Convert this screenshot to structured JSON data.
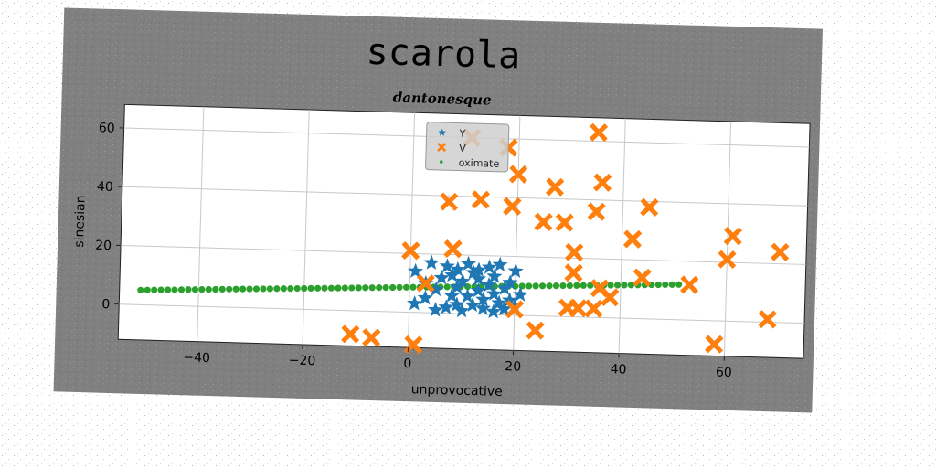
{
  "chart_data": {
    "type": "scatter",
    "title": "scarola",
    "subtitle": "dantonesque",
    "xlabel": "unprovocative",
    "ylabel": "sinesian",
    "xlim": [
      -55,
      75
    ],
    "ylim": [
      -12,
      68
    ],
    "xticks": [
      -40,
      -20,
      0,
      20,
      40,
      60
    ],
    "yticks": [
      0,
      20,
      40,
      60
    ],
    "grid": true,
    "legend": {
      "position": "top-center",
      "entries": [
        "Y",
        "V",
        "oximate"
      ]
    },
    "series": [
      {
        "name": "Y",
        "marker": "star",
        "color": "#1f77b4",
        "points": [
          [
            1,
            3
          ],
          [
            1,
            14
          ],
          [
            3,
            5
          ],
          [
            3,
            10
          ],
          [
            4,
            17
          ],
          [
            5,
            8
          ],
          [
            5,
            1
          ],
          [
            6,
            12
          ],
          [
            7,
            2
          ],
          [
            7,
            16
          ],
          [
            8,
            6
          ],
          [
            8,
            13
          ],
          [
            9,
            3
          ],
          [
            9,
            9
          ],
          [
            9,
            15
          ],
          [
            10,
            1
          ],
          [
            10,
            11
          ],
          [
            11,
            6
          ],
          [
            11,
            17
          ],
          [
            12,
            14
          ],
          [
            12,
            3
          ],
          [
            13,
            8
          ],
          [
            13,
            12
          ],
          [
            13,
            15
          ],
          [
            14,
            2
          ],
          [
            14,
            5
          ],
          [
            15,
            10
          ],
          [
            15,
            16
          ],
          [
            16,
            7
          ],
          [
            16,
            1
          ],
          [
            16,
            13
          ],
          [
            17,
            4
          ],
          [
            17,
            17
          ],
          [
            18,
            9
          ],
          [
            18,
            2
          ],
          [
            19,
            11
          ],
          [
            19,
            5
          ],
          [
            20,
            15
          ],
          [
            20,
            3
          ],
          [
            21,
            7
          ]
        ]
      },
      {
        "name": "V",
        "marker": "x",
        "color": "#ff7f0e",
        "points": [
          [
            -11,
            -8
          ],
          [
            -7,
            -9
          ],
          [
            0,
            21
          ],
          [
            1,
            -11
          ],
          [
            3,
            10
          ],
          [
            7,
            38
          ],
          [
            8,
            22
          ],
          [
            11,
            60
          ],
          [
            13,
            39
          ],
          [
            18,
            57
          ],
          [
            19,
            37
          ],
          [
            20,
            48
          ],
          [
            20,
            2
          ],
          [
            24,
            -5
          ],
          [
            25,
            32
          ],
          [
            27,
            44
          ],
          [
            29,
            32
          ],
          [
            30,
            3
          ],
          [
            31,
            22
          ],
          [
            31,
            15
          ],
          [
            32,
            3
          ],
          [
            35,
            63
          ],
          [
            35,
            36
          ],
          [
            35,
            3
          ],
          [
            36,
            46
          ],
          [
            36,
            10
          ],
          [
            38,
            7
          ],
          [
            42,
            27
          ],
          [
            44,
            14
          ],
          [
            45,
            38
          ],
          [
            53,
            12
          ],
          [
            58,
            -8
          ],
          [
            60,
            21
          ],
          [
            61,
            29
          ],
          [
            68,
            1
          ],
          [
            70,
            24
          ]
        ]
      },
      {
        "name": "oximate",
        "marker": "dot",
        "color": "#2ca02c",
        "line": {
          "x_start": -51,
          "x_end": 51,
          "y_start": 5,
          "y_end": 12,
          "count": 80
        }
      }
    ]
  }
}
